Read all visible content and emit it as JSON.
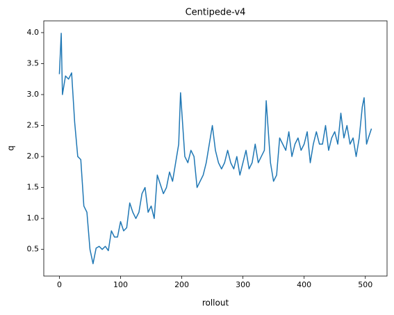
{
  "chart_data": {
    "type": "line",
    "title": "Centipede-v4",
    "x_label": "rollout",
    "y_label": "q",
    "xlim": [
      -25.5,
      535.5
    ],
    "ylim": [
      0.07,
      4.19
    ],
    "xticks": [
      0,
      100,
      200,
      300,
      400,
      500
    ],
    "yticks": [
      0.5,
      {
        "value": 1.0,
        "label": "1.0"
      },
      1.5,
      {
        "value": 2.0,
        "label": "2.0"
      },
      2.5,
      {
        "value": 3.0,
        "label": "3.0"
      },
      3.5,
      {
        "value": 4.0,
        "label": "4.0"
      }
    ],
    "series": [
      {
        "color": "#1f77b4",
        "x": [
          0,
          3,
          5,
          10,
          15,
          20,
          25,
          30,
          35,
          40,
          45,
          50,
          55,
          60,
          65,
          70,
          75,
          80,
          85,
          90,
          95,
          100,
          105,
          110,
          115,
          120,
          125,
          130,
          135,
          140,
          145,
          150,
          155,
          160,
          165,
          170,
          175,
          180,
          185,
          190,
          195,
          198,
          205,
          210,
          215,
          220,
          225,
          230,
          235,
          240,
          245,
          250,
          255,
          260,
          265,
          270,
          275,
          280,
          285,
          290,
          295,
          300,
          305,
          310,
          315,
          320,
          325,
          330,
          335,
          338,
          345,
          350,
          355,
          360,
          365,
          370,
          375,
          380,
          385,
          390,
          395,
          400,
          405,
          410,
          415,
          420,
          425,
          430,
          435,
          440,
          445,
          450,
          455,
          460,
          465,
          470,
          475,
          480,
          485,
          490,
          495,
          498,
          502,
          505,
          510
        ],
        "values": [
          3.33,
          3.99,
          3.0,
          3.3,
          3.25,
          3.35,
          2.55,
          2.0,
          1.95,
          1.2,
          1.1,
          0.5,
          0.27,
          0.52,
          0.55,
          0.5,
          0.55,
          0.48,
          0.8,
          0.7,
          0.7,
          0.95,
          0.8,
          0.85,
          1.25,
          1.1,
          1.0,
          1.1,
          1.4,
          1.5,
          1.1,
          1.2,
          1.0,
          1.7,
          1.55,
          1.4,
          1.5,
          1.75,
          1.6,
          1.9,
          2.2,
          3.03,
          2.0,
          1.9,
          2.1,
          2.0,
          1.5,
          1.6,
          1.7,
          1.9,
          2.2,
          2.5,
          2.1,
          1.9,
          1.8,
          1.9,
          2.1,
          1.9,
          1.8,
          2.0,
          1.7,
          1.9,
          2.1,
          1.8,
          1.9,
          2.2,
          1.9,
          2.0,
          2.1,
          2.9,
          1.9,
          1.6,
          1.7,
          2.3,
          2.2,
          2.1,
          2.4,
          2.0,
          2.2,
          2.3,
          2.1,
          2.2,
          2.4,
          1.9,
          2.2,
          2.4,
          2.2,
          2.2,
          2.5,
          2.1,
          2.3,
          2.4,
          2.2,
          2.7,
          2.3,
          2.5,
          2.2,
          2.3,
          2.0,
          2.3,
          2.8,
          2.95,
          2.2,
          2.3,
          2.45
        ]
      }
    ]
  }
}
